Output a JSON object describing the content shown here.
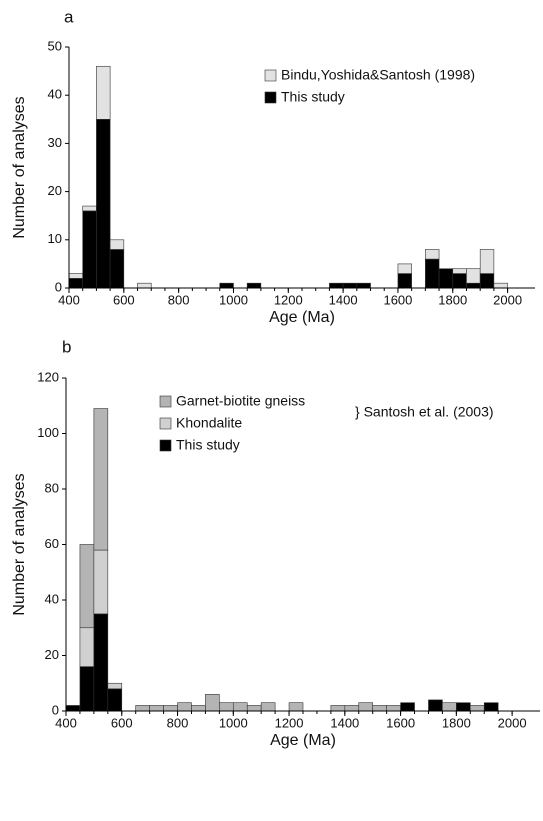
{
  "chart_data": [
    {
      "type": "histogram",
      "label": "a",
      "xlabel": "Age (Ma)",
      "ylabel": "Number of analyses",
      "bins": [
        400,
        450,
        500,
        550,
        600,
        650,
        700,
        750,
        800,
        850,
        900,
        950,
        1000,
        1050,
        1100,
        1150,
        1200,
        1250,
        1300,
        1350,
        1400,
        1450,
        1500,
        1550,
        1600,
        1650,
        1700,
        1750,
        1800,
        1850,
        1900,
        1950,
        2000
      ],
      "series": [
        {
          "name": "This study",
          "color": "#000000",
          "values": [
            2,
            16,
            35,
            8,
            0,
            0,
            0,
            0,
            0,
            0,
            0,
            1,
            0,
            1,
            0,
            0,
            0,
            0,
            0,
            1,
            1,
            1,
            0,
            0,
            3,
            0,
            6,
            4,
            3,
            1,
            3,
            0
          ]
        },
        {
          "name": "Bindu,Yoshida&Santosh (1998)",
          "color": "#e2e2e2",
          "values": [
            1,
            1,
            11,
            2,
            0,
            1,
            0,
            0,
            0,
            0,
            0,
            0,
            0,
            0,
            0,
            0,
            0,
            0,
            0,
            0,
            0,
            0,
            0,
            0,
            2,
            0,
            2,
            0,
            1,
            3,
            5,
            1
          ]
        }
      ],
      "xlim": [
        400,
        2100
      ],
      "ylim": [
        0,
        50
      ],
      "xticks": [
        400,
        600,
        800,
        1000,
        1200,
        1400,
        1600,
        1800,
        2000
      ],
      "yticks": [
        0,
        10,
        20,
        30,
        40,
        50
      ],
      "legend": "upper right"
    },
    {
      "type": "histogram",
      "label": "b",
      "xlabel": "Age (Ma)",
      "ylabel": "Number of analyses",
      "bins": [
        400,
        450,
        500,
        550,
        600,
        650,
        700,
        750,
        800,
        850,
        900,
        950,
        1000,
        1050,
        1100,
        1150,
        1200,
        1250,
        1300,
        1350,
        1400,
        1450,
        1500,
        1550,
        1600,
        1650,
        1700,
        1750,
        1800,
        1850,
        1900,
        1950,
        2000
      ],
      "series": [
        {
          "name": "This study",
          "color": "#000000",
          "values": [
            2,
            16,
            35,
            8,
            0,
            0,
            0,
            0,
            0,
            0,
            0,
            0,
            0,
            0,
            0,
            0,
            0,
            0,
            0,
            0,
            0,
            0,
            0,
            0,
            3,
            0,
            4,
            0,
            3,
            0,
            3,
            0
          ]
        },
        {
          "name": "Khondalite",
          "color": "#d0d0d0",
          "values": [
            0,
            14,
            23,
            2,
            0,
            0,
            0,
            0,
            0,
            0,
            0,
            0,
            0,
            0,
            0,
            0,
            0,
            0,
            0,
            0,
            0,
            0,
            0,
            0,
            0,
            0,
            0,
            0,
            0,
            0,
            0,
            0
          ]
        },
        {
          "name": "Garnet-biotite gneiss",
          "color": "#b4b4b4",
          "values": [
            0,
            30,
            51,
            0,
            0,
            2,
            2,
            2,
            3,
            2,
            6,
            3,
            3,
            2,
            3,
            0,
            3,
            0,
            0,
            2,
            2,
            3,
            2,
            2,
            0,
            0,
            0,
            3,
            0,
            2,
            0,
            0
          ]
        }
      ],
      "annotation": "} Santosh et al. (2003)",
      "xlim": [
        400,
        2100
      ],
      "ylim": [
        0,
        120
      ],
      "xticks": [
        400,
        600,
        800,
        1000,
        1200,
        1400,
        1600,
        1800,
        2000
      ],
      "yticks": [
        0,
        20,
        40,
        60,
        80,
        100,
        120
      ],
      "legend": "upper left"
    }
  ]
}
